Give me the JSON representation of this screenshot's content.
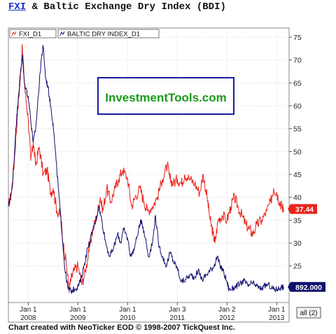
{
  "title": {
    "symbol": "FXI",
    "rest": " & Baltic Exchange Dry Index (BDI)"
  },
  "watermark": "InvestmentTools.com",
  "footer": "Chart created with NeoTicker EOD © 1998-2007 TickQuest Inc.",
  "range_button": "all (2)",
  "colors": {
    "fxi": "#e8231b",
    "bdi": "#10106e",
    "watermark_text": "#1a9a1a",
    "watermark_border": "#1a1aa0"
  },
  "chart_data": {
    "type": "line",
    "y_axis": {
      "ylim": [
        17,
        77
      ],
      "ticks": [
        25,
        30,
        35,
        40,
        45,
        50,
        55,
        60,
        65,
        70,
        75
      ]
    },
    "x_ticks": [
      {
        "month": "Jan 1",
        "year": "2008",
        "t": 2008.0
      },
      {
        "month": "Jan 1",
        "year": "2009",
        "t": 2009.0
      },
      {
        "month": "Jan 1",
        "year": "2010",
        "t": 2010.0
      },
      {
        "month": "Jan 3",
        "year": "2011",
        "t": 2011.0
      },
      {
        "month": "Jan 2",
        "year": "2012",
        "t": 2012.0
      },
      {
        "month": "Jan 1",
        "year": "2013",
        "t": 2013.0
      }
    ],
    "xlim": [
      2007.6,
      2013.25
    ],
    "series": [
      {
        "name": "FXI_D1",
        "last_label": "37.44",
        "points": [
          [
            2007.6,
            38
          ],
          [
            2007.66,
            41
          ],
          [
            2007.72,
            48
          ],
          [
            2007.78,
            58
          ],
          [
            2007.84,
            66
          ],
          [
            2007.88,
            73
          ],
          [
            2007.93,
            64
          ],
          [
            2008.0,
            57
          ],
          [
            2008.05,
            48
          ],
          [
            2008.1,
            52
          ],
          [
            2008.15,
            47
          ],
          [
            2008.22,
            51
          ],
          [
            2008.3,
            45
          ],
          [
            2008.38,
            46
          ],
          [
            2008.45,
            41
          ],
          [
            2008.5,
            42
          ],
          [
            2008.58,
            37
          ],
          [
            2008.65,
            36
          ],
          [
            2008.7,
            30
          ],
          [
            2008.76,
            26
          ],
          [
            2008.82,
            20
          ],
          [
            2008.86,
            22
          ],
          [
            2008.92,
            24
          ],
          [
            2009.0,
            25
          ],
          [
            2009.08,
            21
          ],
          [
            2009.15,
            24
          ],
          [
            2009.22,
            28
          ],
          [
            2009.3,
            33
          ],
          [
            2009.38,
            36
          ],
          [
            2009.45,
            40
          ],
          [
            2009.5,
            37
          ],
          [
            2009.58,
            42
          ],
          [
            2009.66,
            39
          ],
          [
            2009.75,
            42
          ],
          [
            2009.82,
            44
          ],
          [
            2009.9,
            46
          ],
          [
            2010.0,
            44
          ],
          [
            2010.08,
            38
          ],
          [
            2010.15,
            40
          ],
          [
            2010.25,
            42
          ],
          [
            2010.33,
            39
          ],
          [
            2010.4,
            37
          ],
          [
            2010.5,
            38
          ],
          [
            2010.6,
            40
          ],
          [
            2010.7,
            44
          ],
          [
            2010.8,
            47
          ],
          [
            2010.85,
            44
          ],
          [
            2010.92,
            43
          ],
          [
            2011.0,
            44
          ],
          [
            2011.08,
            43
          ],
          [
            2011.15,
            45
          ],
          [
            2011.25,
            44
          ],
          [
            2011.35,
            43
          ],
          [
            2011.45,
            41
          ],
          [
            2011.52,
            45
          ],
          [
            2011.6,
            40
          ],
          [
            2011.66,
            35
          ],
          [
            2011.72,
            32
          ],
          [
            2011.76,
            30
          ],
          [
            2011.82,
            35
          ],
          [
            2011.9,
            36
          ],
          [
            2012.0,
            35
          ],
          [
            2012.08,
            38
          ],
          [
            2012.15,
            40
          ],
          [
            2012.22,
            38
          ],
          [
            2012.3,
            36
          ],
          [
            2012.38,
            34
          ],
          [
            2012.45,
            33
          ],
          [
            2012.52,
            32
          ],
          [
            2012.6,
            34
          ],
          [
            2012.7,
            35
          ],
          [
            2012.8,
            37
          ],
          [
            2012.88,
            39
          ],
          [
            2012.94,
            42
          ],
          [
            2013.0,
            41
          ],
          [
            2013.06,
            39
          ],
          [
            2013.1,
            38
          ],
          [
            2013.14,
            37.44
          ]
        ]
      },
      {
        "name": "BALTIC DRY INDEX_D1",
        "last_label": "892.000",
        "points": [
          [
            2007.6,
            38
          ],
          [
            2007.68,
            42
          ],
          [
            2007.75,
            55
          ],
          [
            2007.8,
            62
          ],
          [
            2007.85,
            68
          ],
          [
            2007.88,
            71
          ],
          [
            2007.92,
            65
          ],
          [
            2008.0,
            62
          ],
          [
            2008.06,
            56
          ],
          [
            2008.1,
            52
          ],
          [
            2008.15,
            55
          ],
          [
            2008.2,
            62
          ],
          [
            2008.26,
            70
          ],
          [
            2008.3,
            73
          ],
          [
            2008.35,
            66
          ],
          [
            2008.4,
            64
          ],
          [
            2008.45,
            60
          ],
          [
            2008.5,
            56
          ],
          [
            2008.56,
            48
          ],
          [
            2008.62,
            40
          ],
          [
            2008.68,
            32
          ],
          [
            2008.74,
            24
          ],
          [
            2008.8,
            20
          ],
          [
            2008.86,
            19.5
          ],
          [
            2008.94,
            20
          ],
          [
            2009.0,
            20.5
          ],
          [
            2009.06,
            22
          ],
          [
            2009.12,
            25
          ],
          [
            2009.2,
            29
          ],
          [
            2009.28,
            32
          ],
          [
            2009.36,
            35
          ],
          [
            2009.42,
            38
          ],
          [
            2009.48,
            35
          ],
          [
            2009.56,
            30
          ],
          [
            2009.64,
            27
          ],
          [
            2009.72,
            29
          ],
          [
            2009.8,
            32
          ],
          [
            2009.86,
            30
          ],
          [
            2009.92,
            33
          ],
          [
            2010.0,
            31
          ],
          [
            2010.06,
            27
          ],
          [
            2010.14,
            29
          ],
          [
            2010.22,
            33
          ],
          [
            2010.28,
            35
          ],
          [
            2010.36,
            31
          ],
          [
            2010.42,
            27
          ],
          [
            2010.5,
            30
          ],
          [
            2010.56,
            36
          ],
          [
            2010.62,
            30
          ],
          [
            2010.7,
            27
          ],
          [
            2010.78,
            25
          ],
          [
            2010.86,
            28
          ],
          [
            2010.92,
            26
          ],
          [
            2011.0,
            24.5
          ],
          [
            2011.08,
            21.5
          ],
          [
            2011.16,
            22
          ],
          [
            2011.26,
            23
          ],
          [
            2011.34,
            22.5
          ],
          [
            2011.42,
            24
          ],
          [
            2011.5,
            22
          ],
          [
            2011.58,
            23
          ],
          [
            2011.66,
            24
          ],
          [
            2011.74,
            25
          ],
          [
            2011.8,
            27
          ],
          [
            2011.86,
            25
          ],
          [
            2011.92,
            24
          ],
          [
            2012.0,
            21.5
          ],
          [
            2012.04,
            19.8
          ],
          [
            2012.1,
            20
          ],
          [
            2012.18,
            20.5
          ],
          [
            2012.26,
            21
          ],
          [
            2012.34,
            21.8
          ],
          [
            2012.42,
            20.6
          ],
          [
            2012.5,
            21.2
          ],
          [
            2012.58,
            20.8
          ],
          [
            2012.66,
            20
          ],
          [
            2012.74,
            20.4
          ],
          [
            2012.82,
            21
          ],
          [
            2012.9,
            20.2
          ],
          [
            2012.96,
            19.8
          ],
          [
            2013.02,
            20
          ],
          [
            2013.08,
            20.3
          ],
          [
            2013.14,
            20.4
          ]
        ]
      }
    ]
  }
}
